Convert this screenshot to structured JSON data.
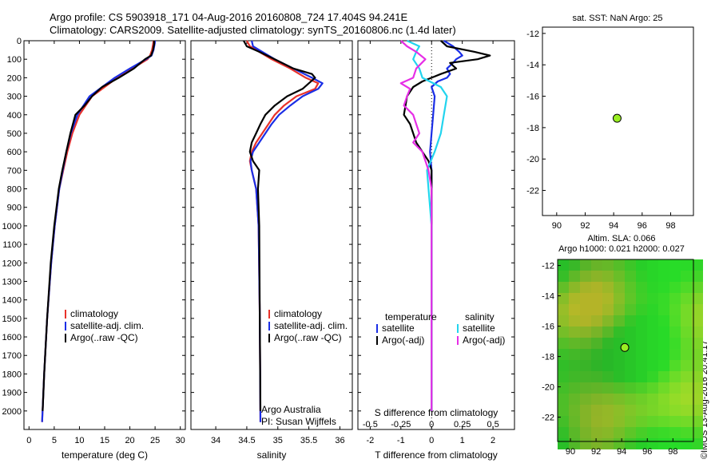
{
  "header": {
    "title_line1": "Argo profile: CS 5903918_171 04-Aug-2016 20160808_724 17.404S 94.241E",
    "title_line2": "Climatology: CARS2009. Satellite-adjusted climatology: synTS_20160806.nc (1.4d later)"
  },
  "stamp": "©IMOS 13-Aug-2016 20:41:17",
  "colors": {
    "climatology": "#e8322a",
    "satellite": "#1a2ee6",
    "argo": "#000000",
    "salinity_sat": "#22d4ee",
    "salinity_argo": "#e62ee6",
    "map_green": "#55cc33",
    "marker": "#99ee22"
  },
  "chart_data": [
    {
      "type": "line",
      "id": "temperature",
      "xlabel": "temperature (deg C)",
      "ylim": [
        2100,
        0
      ],
      "xlim": [
        -1,
        31
      ],
      "xticks": [
        0,
        5,
        10,
        15,
        20,
        25,
        30
      ],
      "yticks": [
        0,
        100,
        200,
        300,
        400,
        500,
        600,
        700,
        800,
        900,
        1000,
        1100,
        1200,
        1300,
        1400,
        1500,
        1600,
        1700,
        1800,
        1900,
        2000
      ],
      "legend": [
        "climatology",
        "satellite-adj. clim.",
        "Argo(..raw -QC)"
      ],
      "series": [
        {
          "name": "climatology",
          "color": "#e8322a",
          "depth": [
            0,
            20,
            50,
            80,
            100,
            150,
            200,
            250,
            300,
            400,
            500,
            600,
            700,
            800,
            1000,
            1200,
            1500,
            1800,
            2060
          ],
          "values": [
            24.7,
            24.6,
            24.4,
            24.0,
            23.5,
            20.5,
            17.5,
            15.0,
            12.5,
            10.0,
            8.6,
            7.6,
            6.8,
            6.0,
            5.1,
            4.4,
            3.6,
            3.0,
            2.6
          ]
        },
        {
          "name": "satellite-adj. clim.",
          "color": "#1a2ee6",
          "depth": [
            0,
            20,
            50,
            80,
            100,
            150,
            200,
            250,
            300,
            400,
            500,
            600,
            700,
            800,
            1000,
            1200,
            1500,
            1800,
            2060
          ],
          "values": [
            25.0,
            24.9,
            24.7,
            24.3,
            23.2,
            20.0,
            17.0,
            14.5,
            12.0,
            9.6,
            8.3,
            7.4,
            6.7,
            6.0,
            5.1,
            4.4,
            3.6,
            3.0,
            2.6
          ]
        },
        {
          "name": "Argo(..raw -QC)",
          "color": "#000000",
          "depth": [
            0,
            20,
            50,
            80,
            100,
            150,
            200,
            250,
            300,
            350,
            400,
            500,
            600,
            700,
            800,
            1000,
            1200,
            1500,
            1800,
            2000
          ],
          "values": [
            24.8,
            24.8,
            24.6,
            24.2,
            23.0,
            20.8,
            17.8,
            14.5,
            12.5,
            11.0,
            9.2,
            8.2,
            7.4,
            6.6,
            5.9,
            5.0,
            4.3,
            3.6,
            3.0,
            2.7
          ]
        }
      ]
    },
    {
      "type": "line",
      "id": "salinity",
      "xlabel": "salinity",
      "ylim": [
        2100,
        0
      ],
      "xlim": [
        33.6,
        36.2
      ],
      "xticks": [
        34,
        34.5,
        35,
        35.5,
        36
      ],
      "xticklabels": [
        "34",
        "34.5",
        "35",
        "35.5",
        "36"
      ],
      "legend": [
        "climatology",
        "satellite-adj. clim.",
        "Argo(..raw -QC)"
      ],
      "annotation_lines": [
        "Argo Australia",
        "PI: Susan Wijffels"
      ],
      "series": [
        {
          "name": "climatology",
          "color": "#e8322a",
          "depth": [
            0,
            30,
            60,
            100,
            150,
            200,
            230,
            260,
            300,
            350,
            400,
            450,
            500,
            550,
            600,
            650,
            700,
            800,
            1000,
            1500,
            2060
          ],
          "values": [
            34.5,
            34.55,
            34.7,
            34.9,
            35.2,
            35.45,
            35.65,
            35.6,
            35.3,
            35.1,
            34.95,
            34.85,
            34.75,
            34.65,
            34.58,
            34.55,
            34.58,
            34.65,
            34.69,
            34.71,
            34.72
          ]
        },
        {
          "name": "satellite-adj. clim.",
          "color": "#1a2ee6",
          "depth": [
            0,
            30,
            60,
            100,
            150,
            200,
            230,
            260,
            300,
            350,
            400,
            450,
            500,
            550,
            600,
            650,
            700,
            800,
            1000,
            1500,
            2060
          ],
          "values": [
            34.58,
            34.6,
            34.75,
            34.95,
            35.25,
            35.55,
            35.72,
            35.65,
            35.4,
            35.2,
            35.02,
            34.9,
            34.8,
            34.7,
            34.6,
            34.56,
            34.58,
            34.65,
            34.69,
            34.71,
            34.72
          ]
        },
        {
          "name": "Argo(..raw -QC)",
          "color": "#000000",
          "depth": [
            0,
            30,
            60,
            100,
            150,
            180,
            200,
            230,
            260,
            300,
            350,
            400,
            450,
            500,
            550,
            600,
            650,
            700,
            800,
            1000,
            1500,
            2000
          ],
          "values": [
            34.45,
            34.5,
            34.7,
            34.95,
            35.25,
            35.55,
            35.6,
            35.5,
            35.4,
            35.15,
            34.95,
            34.8,
            34.72,
            34.65,
            34.58,
            34.55,
            34.6,
            34.7,
            34.68,
            34.7,
            34.71,
            34.72
          ]
        }
      ]
    },
    {
      "type": "line",
      "id": "difference",
      "xlabel": "T difference from climatology",
      "xlabel_top": "S difference from climatology",
      "ylim": [
        2100,
        0
      ],
      "xlim": [
        -2.4,
        2.7
      ],
      "xticks": [
        -2,
        -1,
        0,
        1,
        2
      ],
      "sticks_values": [
        -0.5,
        -0.25,
        0,
        0.25,
        0.5
      ],
      "sticks_labels": [
        "-0.5",
        "-0.25",
        "0",
        "0.25",
        "0.5"
      ],
      "legend_titles": [
        "temperature",
        "salinity"
      ],
      "legend": [
        "satellite",
        "Argo(-adj)",
        "satellite",
        "Argo(-adj)"
      ],
      "series": [
        {
          "name": "satellite",
          "color": "#1a2ee6",
          "depth": [
            0,
            30,
            60,
            80,
            100,
            120,
            150,
            180,
            200,
            220,
            250,
            300,
            400,
            500,
            600,
            700,
            800,
            1000,
            1500,
            2000
          ],
          "values": [
            0.4,
            0.7,
            0.9,
            1.0,
            0.8,
            0.7,
            0.5,
            0.6,
            0.5,
            0.2,
            0.0,
            0.1,
            0.05,
            0.0,
            -0.05,
            0.0,
            0.0,
            0.0,
            0.0,
            0.0
          ]
        },
        {
          "name": "Argo(-adj)",
          "color": "#000000",
          "depth": [
            0,
            30,
            60,
            80,
            100,
            120,
            150,
            180,
            200,
            220,
            250,
            300,
            350,
            400,
            450,
            500,
            550,
            600,
            650,
            700,
            800,
            1000,
            1500,
            2000
          ],
          "values": [
            0.3,
            0.5,
            1.4,
            1.9,
            1.5,
            0.6,
            0.8,
            0.3,
            0.0,
            -0.3,
            -0.6,
            -0.8,
            -0.85,
            -0.9,
            -0.7,
            -0.6,
            -0.5,
            -0.3,
            -0.1,
            0.0,
            0.0,
            0.0,
            0.0,
            0.0
          ]
        },
        {
          "name": "satellite",
          "color": "#22d4ee",
          "depth": [
            0,
            30,
            60,
            100,
            150,
            200,
            250,
            300,
            400,
            500,
            600,
            700,
            800,
            1000,
            1500,
            2000
          ],
          "values": [
            -0.8,
            -0.4,
            -0.5,
            -0.6,
            -0.4,
            -0.3,
            0.3,
            0.5,
            0.4,
            0.3,
            0.1,
            -0.15,
            -0.1,
            0.0,
            0.0,
            0.0
          ]
        },
        {
          "name": "Argo(-adj)",
          "color": "#e62ee6",
          "depth": [
            0,
            30,
            60,
            100,
            150,
            200,
            230,
            260,
            300,
            350,
            400,
            450,
            500,
            550,
            600,
            650,
            700,
            800,
            1000,
            1500,
            2000
          ],
          "values": [
            -1.0,
            -0.8,
            -0.5,
            -0.2,
            -0.5,
            -0.6,
            -1.0,
            -0.7,
            -0.8,
            -0.9,
            -0.6,
            -0.5,
            -0.4,
            -0.6,
            -0.3,
            -0.2,
            -0.1,
            0.0,
            0.0,
            0.0,
            0.0
          ]
        }
      ]
    },
    {
      "type": "scatter",
      "id": "sst_map",
      "title": "sat. SST: NaN Argo: 25",
      "xlim": [
        89,
        99.6
      ],
      "ylim": [
        -23.6,
        -11.6
      ],
      "xticks": [
        90,
        92,
        94,
        96,
        98
      ],
      "yticks": [
        -12,
        -14,
        -16,
        -18,
        -20,
        -22
      ],
      "points": [
        {
          "x": 94.241,
          "y": -17.404
        }
      ]
    },
    {
      "type": "heatmap",
      "id": "sla_map",
      "title_line1": "Altim. SLA: 0.066",
      "title_line2": "Argo h1000: 0.021 h2000: 0.027",
      "xlim": [
        89,
        99.6
      ],
      "ylim": [
        -23.6,
        -11.6
      ],
      "xticks": [
        90,
        92,
        94,
        96,
        98
      ],
      "yticks": [
        -12,
        -14,
        -16,
        -18,
        -20,
        -22
      ],
      "points": [
        {
          "x": 94.241,
          "y": -17.404
        }
      ]
    }
  ]
}
